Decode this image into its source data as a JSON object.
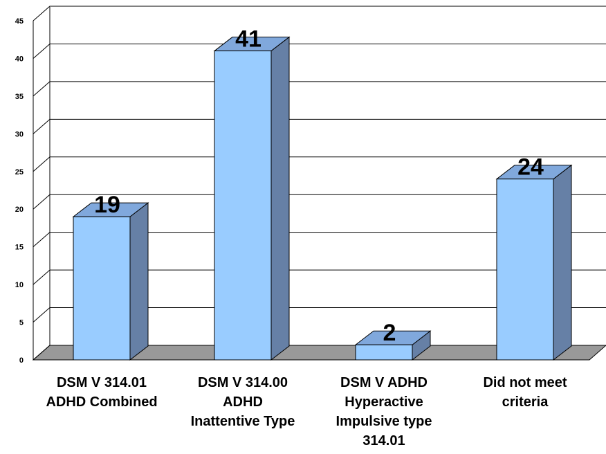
{
  "chart_data": {
    "type": "bar3d",
    "categories": [
      [
        "DSM V  314.01",
        "ADHD Combined"
      ],
      [
        "DSM V 314.00",
        "ADHD",
        "Inattentive Type"
      ],
      [
        "DSM V ADHD",
        "Hyperactive",
        "Impulsive type",
        "314.01"
      ],
      [
        "Did not meet",
        "criteria"
      ]
    ],
    "values": [
      19,
      41,
      2,
      24
    ],
    "color": "#99ccff",
    "side_color": "#6680a6",
    "top_color": "#80a8dc",
    "ylim": [
      0,
      45
    ],
    "yticks": [
      0,
      5,
      10,
      15,
      20,
      25,
      30,
      35,
      40,
      45
    ],
    "grid": true
  }
}
